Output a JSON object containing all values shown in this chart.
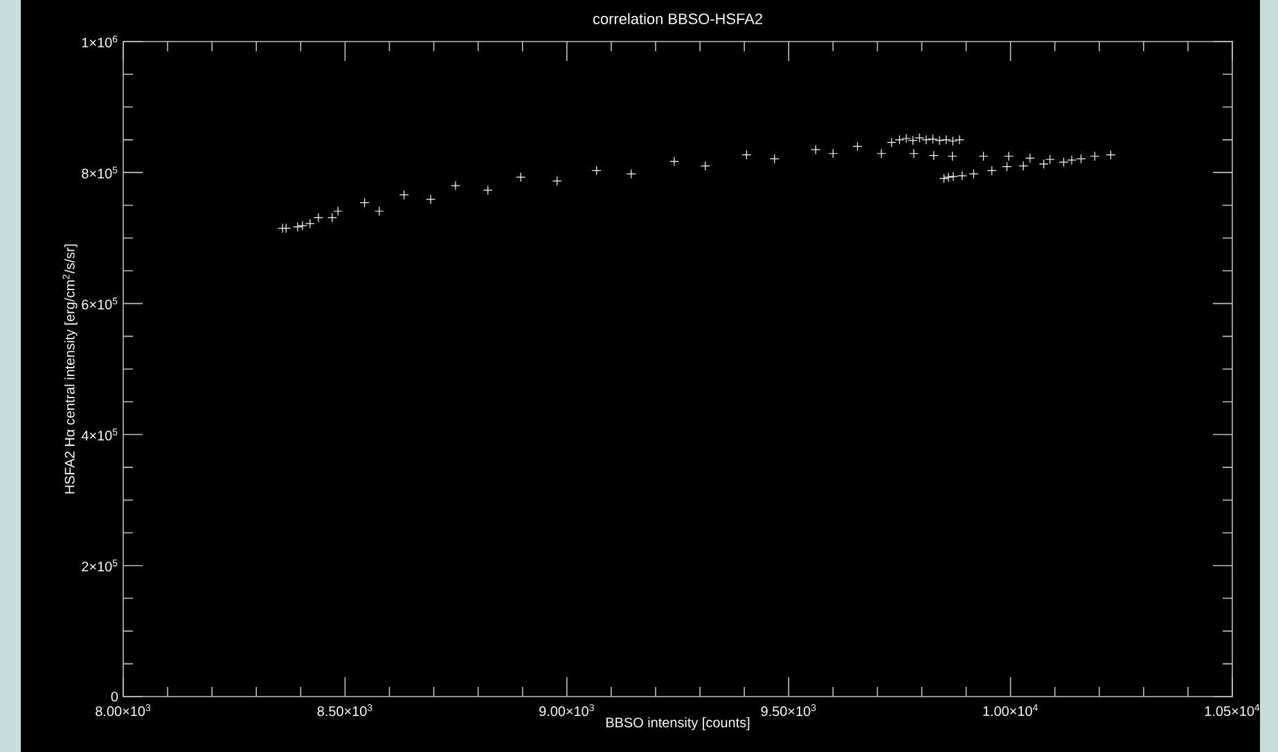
{
  "chart_data": {
    "type": "scatter",
    "title": "correlation BBSO-HSFA2",
    "xlabel": "BBSO intensity [counts]",
    "ylabel": "HSFA2 Hα central intensity [erg/cm$^{2}$/s/sr]",
    "xlim": [
      8000,
      10500
    ],
    "ylim": [
      0,
      1000000
    ],
    "xticks": [
      {
        "value": 8000,
        "label": "8.00×10$^{3}$"
      },
      {
        "value": 8500,
        "label": "8.50×10$^{3}$"
      },
      {
        "value": 9000,
        "label": "9.00×10$^{3}$"
      },
      {
        "value": 9500,
        "label": "9.50×10$^{3}$"
      },
      {
        "value": 10000,
        "label": "1.00×10$^{4}$"
      },
      {
        "value": 10500,
        "label": "1.05×10$^{4}$"
      }
    ],
    "yticks": [
      0,
      {
        "value": 200000,
        "label": "2×10$^{5}$"
      },
      {
        "value": 400000,
        "label": "4×10$^{5}$"
      },
      {
        "value": 600000,
        "label": "6×10$^{5}$"
      },
      {
        "value": 800000,
        "label": "8×10$^{5}$"
      },
      {
        "value": 1000000,
        "label": "1×10$^{6}$"
      }
    ],
    "marker": "cross",
    "grid": false,
    "series": [
      {
        "color": "#ffffff",
        "x": [
          8359,
          8367,
          8393,
          8404,
          8421,
          8440,
          8471,
          8484,
          8544,
          8577,
          8633,
          8693,
          8749,
          8822,
          8896,
          8978,
          9067,
          9145,
          9242,
          9312,
          9405,
          9468,
          9561,
          9600,
          9655,
          9709,
          9732,
          9750,
          9765,
          9780,
          9795,
          9810,
          9825,
          9840,
          9855,
          9870,
          9885,
          9782,
          9827,
          9869,
          9850,
          9860,
          9871,
          9891,
          9917,
          9939,
          9958,
          9996,
          9992,
          10029,
          10044,
          10075,
          10089,
          10120,
          10138,
          10159,
          10190,
          10226
        ],
        "values": [
          715000,
          715000,
          717000,
          719000,
          722000,
          731000,
          731000,
          741000,
          754000,
          741000,
          766000,
          759000,
          780000,
          773000,
          793000,
          787000,
          803000,
          798000,
          817000,
          810000,
          827000,
          821000,
          835000,
          829000,
          840000,
          829000,
          846000,
          850000,
          852000,
          849000,
          853000,
          850000,
          851000,
          849000,
          850000,
          848000,
          850000,
          829000,
          826000,
          825000,
          791000,
          793000,
          794000,
          795000,
          798000,
          825000,
          803000,
          825000,
          809000,
          810000,
          822000,
          813000,
          820000,
          816000,
          819000,
          821000,
          825000,
          827000
        ]
      }
    ]
  }
}
